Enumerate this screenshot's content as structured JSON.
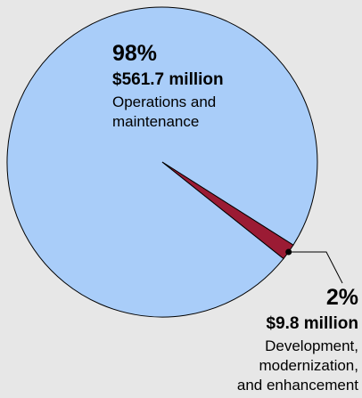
{
  "chart_data": {
    "type": "pie",
    "title": "",
    "slices": [
      {
        "percent_label": "98%",
        "amount_label": "$561.7 million",
        "description": "Operations and\nmaintenance",
        "value": 561.7,
        "color": "#a9cdf9"
      },
      {
        "percent_label": "2%",
        "amount_label": "$9.8 million",
        "description": "Development,\nmodernization,\nand enhancement",
        "value": 9.8,
        "color": "#9b1b34"
      }
    ]
  }
}
